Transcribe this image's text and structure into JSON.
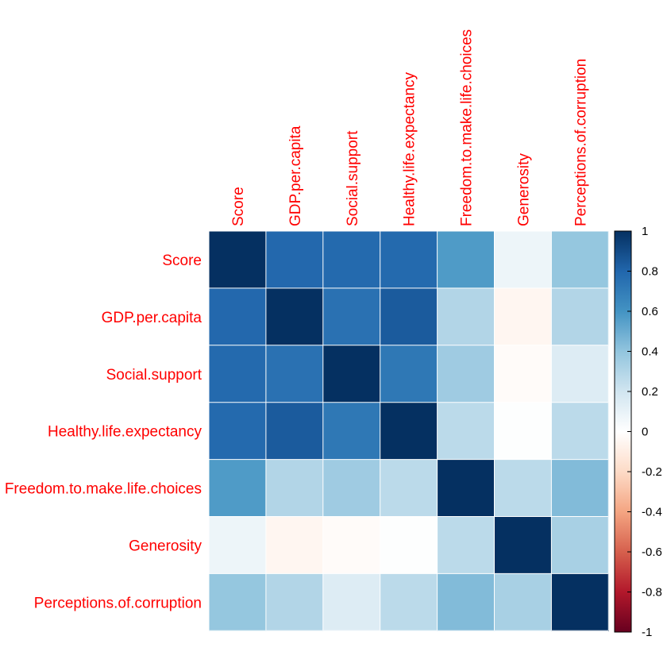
{
  "chart_data": {
    "type": "heatmap",
    "title": "",
    "variables": [
      "Score",
      "GDP.per.capita",
      "Social.support",
      "Healthy.life.expectancy",
      "Freedom.to.make.life.choices",
      "Generosity",
      "Perceptions.of.corruption"
    ],
    "matrix": [
      [
        1.0,
        0.79,
        0.78,
        0.78,
        0.57,
        0.08,
        0.39
      ],
      [
        0.79,
        1.0,
        0.75,
        0.84,
        0.3,
        -0.05,
        0.3
      ],
      [
        0.78,
        0.75,
        1.0,
        0.72,
        0.36,
        -0.02,
        0.15
      ],
      [
        0.78,
        0.84,
        0.72,
        1.0,
        0.27,
        0.01,
        0.27
      ],
      [
        0.57,
        0.3,
        0.36,
        0.27,
        1.0,
        0.27,
        0.44
      ],
      [
        0.08,
        -0.05,
        -0.02,
        0.01,
        0.27,
        1.0,
        0.33
      ],
      [
        0.39,
        0.3,
        0.15,
        0.27,
        0.44,
        0.33,
        1.0
      ]
    ],
    "colorbar": {
      "range": [
        -1,
        1
      ],
      "ticks": [
        "1",
        "0.8",
        "0.6",
        "0.4",
        "0.2",
        "0",
        "-0.2",
        "-0.4",
        "-0.6",
        "-0.8",
        "-1"
      ],
      "tick_values": [
        1,
        0.8,
        0.6,
        0.4,
        0.2,
        0,
        -0.2,
        -0.4,
        -0.6,
        -0.8,
        -1
      ]
    },
    "colors": {
      "label": "#ff0000",
      "palette": [
        "#67001F",
        "#B2182B",
        "#D6604D",
        "#F4A582",
        "#FDDBC7",
        "#FFFFFF",
        "#D1E5F0",
        "#92C5DE",
        "#4393C3",
        "#2166AC",
        "#053061"
      ]
    }
  }
}
